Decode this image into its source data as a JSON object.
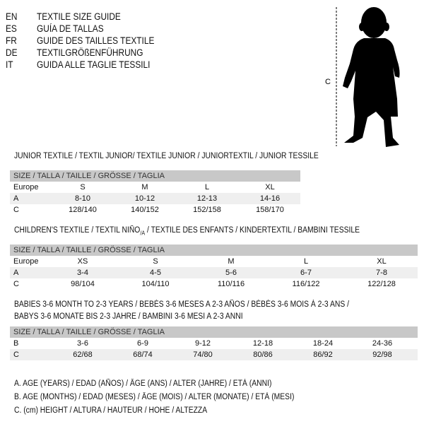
{
  "languages": [
    {
      "code": "EN",
      "title": "TEXTILE SIZE GUIDE"
    },
    {
      "code": "ES",
      "title": "GUÍA DE TALLAS"
    },
    {
      "code": "FR",
      "title": "GUIDE DES TAILLES TEXTILE"
    },
    {
      "code": "DE",
      "title": "TEXTILGRÖßENFÜHRUNG"
    },
    {
      "code": "IT",
      "title": "GUIDA ALLE TAGLIE TESSILI"
    }
  ],
  "figure": {
    "height_label": "C"
  },
  "junior": {
    "title": "JUNIOR TEXTILE / TEXTIL JUNIOR/ TEXTILE JUNIOR / JUNIORTEXTIL / JUNIOR TESSILE",
    "header": "SIZE / TALLA / TAILLE / GRÖSSE / TAGLIA",
    "rows": [
      {
        "label": "Europe",
        "values": [
          "S",
          "M",
          "L",
          "XL"
        ]
      },
      {
        "label": "A",
        "values": [
          "8-10",
          "10-12",
          "12-13",
          "14-16"
        ]
      },
      {
        "label": "C",
        "values": [
          "128/140",
          "140/152",
          "152/158",
          "158/170"
        ]
      }
    ]
  },
  "children": {
    "title_part1": "CHILDREN'S TEXTILE / TEXTIL NIÑO",
    "title_sub": "/A",
    "title_part2": " / TEXTILE DES ENFANTS / KINDERTEXTIL / BAMBINI TESSILE",
    "header": "SIZE / TALLA / TAILLE / GRÖSSE / TAGLIA",
    "rows": [
      {
        "label": "Europe",
        "values": [
          "XS",
          "S",
          "M",
          "L",
          "XL"
        ]
      },
      {
        "label": "A",
        "values": [
          "3-4",
          "4-5",
          "5-6",
          "6-7",
          "7-8"
        ]
      },
      {
        "label": "C",
        "values": [
          "98/104",
          "104/110",
          "110/116",
          "116/122",
          "122/128"
        ]
      }
    ]
  },
  "babies": {
    "title_line1": "BABIES 3-6 MONTH TO 2-3 YEARS / BEBÉS 3-6 MESES A 2-3 AÑOS / BÉBÉS 3-6 MOIS À 2-3 ANS /",
    "title_line2": "BABYS 3-6 MONATE BIS 2-3 JAHRE / BAMBINI 3-6 MESI A 2-3 ANNI",
    "header": "SIZE / TALLA / TAILLE / GRÖSSE / TAGLIA",
    "rows": [
      {
        "label": "B",
        "values": [
          "3-6",
          "6-9",
          "9-12",
          "12-18",
          "18-24",
          "24-36"
        ]
      },
      {
        "label": "C",
        "values": [
          "62/68",
          "68/74",
          "74/80",
          "80/86",
          "86/92",
          "92/98"
        ]
      }
    ]
  },
  "legend": [
    "A. AGE (YEARS) / EDAD (AÑOS) / ÂGE (ANS) / ALTER (JAHRE) / ETÀ (ANNI)",
    "B. AGE (MONTHS) / EDAD (MESES) / ÂGE (MOIS) / ALTER (MONATE) / ETÀ (MESI)",
    "C. (cm) HEIGHT / ALTURA / HAUTEUR / HÖHE / ALTEZZA"
  ]
}
